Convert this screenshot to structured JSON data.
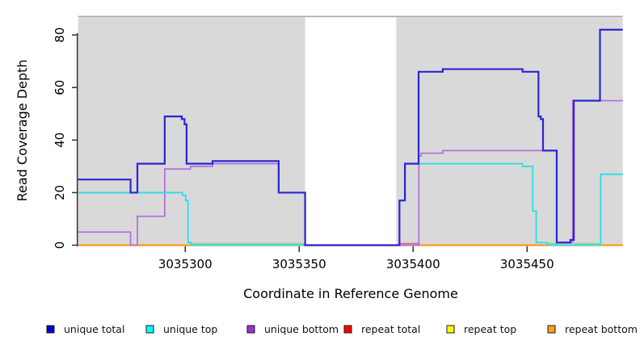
{
  "chart_data": {
    "type": "line",
    "subtype": "step",
    "title": "",
    "xlabel": "Coordinate in Reference Genome",
    "ylabel": "Read Coverage Depth",
    "xlim": [
      3035253,
      3035492
    ],
    "ylim": [
      0,
      87
    ],
    "x_ticks": [
      3035300,
      3035350,
      3035400,
      3035450
    ],
    "y_ticks": [
      0,
      20,
      40,
      60,
      80
    ],
    "grid": false,
    "legend_position": "bottom",
    "shading": {
      "color": "#d9d9d9",
      "top_border_color": "#a9a9a9",
      "regions_x": [
        [
          3035253,
          3035352.6
        ],
        [
          3035392.6,
          3035492
        ]
      ]
    },
    "series": [
      {
        "name": "repeat total",
        "color": "#e60000",
        "width": 1.4,
        "steps": [
          [
            3035253,
            0
          ]
        ]
      },
      {
        "name": "repeat top",
        "color": "#ffff00",
        "width": 1.4,
        "steps": [
          [
            3035253,
            0
          ]
        ]
      },
      {
        "name": "repeat bottom",
        "color": "#ff9a1e",
        "width": 2.2,
        "steps": [
          [
            3035253,
            0
          ]
        ]
      },
      {
        "name": "unique bottom",
        "color": "#b273dc",
        "width": 1.8,
        "steps": [
          [
            3035253,
            5
          ],
          [
            3035276,
            0
          ],
          [
            3035279,
            11
          ],
          [
            3035291,
            29
          ],
          [
            3035302.3,
            30
          ],
          [
            3035312,
            31
          ],
          [
            3035341,
            20
          ],
          [
            3035352.6,
            0
          ],
          [
            3035402.5,
            34
          ],
          [
            3035403.5,
            35
          ],
          [
            3035413,
            36
          ],
          [
            3035463,
            1
          ],
          [
            3035470,
            55
          ]
        ]
      },
      {
        "name": "unique top",
        "color": "#26dfe9",
        "width": 1.8,
        "steps": [
          [
            3035253,
            20
          ],
          [
            3035298.8,
            19
          ],
          [
            3035300.2,
            17
          ],
          [
            3035301.2,
            1
          ],
          [
            3035302.5,
            0
          ],
          [
            3035394,
            17
          ],
          [
            3035396.4,
            31
          ],
          [
            3035448,
            30
          ],
          [
            3035452.5,
            13
          ],
          [
            3035454,
            1
          ],
          [
            3035459,
            0
          ],
          [
            3035482.3,
            27
          ]
        ]
      },
      {
        "name": "unique total",
        "color": "#2b25d4",
        "width": 2.2,
        "steps": [
          [
            3035253,
            25
          ],
          [
            3035276,
            20
          ],
          [
            3035279,
            31
          ],
          [
            3035291,
            49
          ],
          [
            3035298.5,
            48
          ],
          [
            3035299.7,
            46
          ],
          [
            3035300.6,
            31
          ],
          [
            3035312,
            32
          ],
          [
            3035341,
            20
          ],
          [
            3035352.6,
            0
          ],
          [
            3035394,
            17
          ],
          [
            3035396.4,
            31
          ],
          [
            3035402.4,
            66
          ],
          [
            3035413,
            67
          ],
          [
            3035448,
            66
          ],
          [
            3035455,
            49
          ],
          [
            3035456,
            48
          ],
          [
            3035457,
            36
          ],
          [
            3035463,
            1
          ],
          [
            3035469,
            2
          ],
          [
            3035470.5,
            55
          ],
          [
            3035482,
            82
          ]
        ]
      }
    ],
    "overlap_artifacts": [
      {
        "color": "#8fd491",
        "y": 0.6,
        "x_range": [
          3035302.5,
          3035352.6
        ]
      },
      {
        "color": "#d4688c",
        "y": 0.6,
        "x_range": [
          3035394.0,
          3035402.4
        ]
      },
      {
        "color": "#8fd491",
        "y": 0.6,
        "x_range": [
          3035459.0,
          3035463.4
        ]
      },
      {
        "color": "#8fd491",
        "y": 0.6,
        "x_range": [
          3035470.5,
          3035482.3
        ]
      }
    ]
  },
  "legend": {
    "items": [
      {
        "label": "unique total",
        "color": "#0000cd"
      },
      {
        "label": "unique top",
        "color": "#00ffff"
      },
      {
        "label": "unique bottom",
        "color": "#9b30d2"
      },
      {
        "label": "repeat total",
        "color": "#fe0000"
      },
      {
        "label": "repeat top",
        "color": "#ffff00"
      },
      {
        "label": "repeat bottom",
        "color": "#ffa019"
      }
    ]
  }
}
